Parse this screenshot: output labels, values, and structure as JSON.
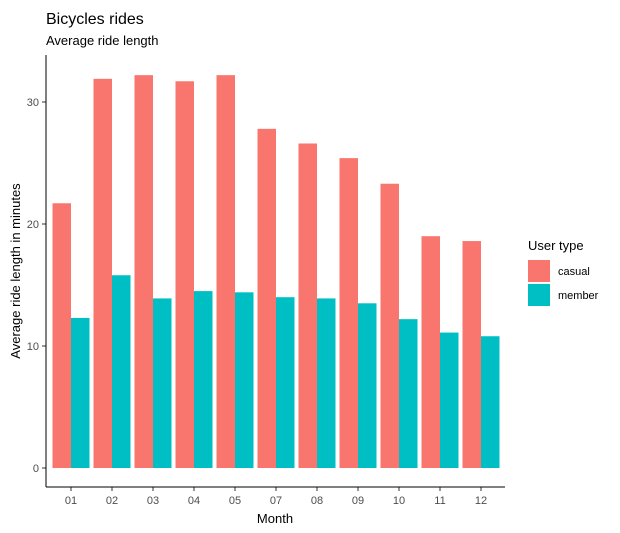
{
  "chart_data": {
    "type": "bar",
    "title": "Bicycles rides",
    "subtitle": "Average ride length",
    "xlabel": "Month",
    "ylabel": "Average ride length in minutes",
    "categories": [
      "01",
      "02",
      "03",
      "04",
      "05",
      "07",
      "08",
      "09",
      "10",
      "11",
      "12"
    ],
    "series": [
      {
        "name": "casual",
        "color": "#F8766D",
        "values": [
          21.7,
          31.9,
          32.2,
          31.7,
          32.2,
          27.8,
          26.6,
          25.4,
          23.3,
          19.0,
          18.6
        ]
      },
      {
        "name": "member",
        "color": "#00BFC4",
        "values": [
          12.3,
          15.8,
          13.9,
          14.5,
          14.4,
          14.0,
          13.9,
          13.5,
          12.2,
          11.1,
          10.8
        ]
      }
    ],
    "ylim": [
      0,
      33
    ],
    "yticks": [
      0,
      10,
      20,
      30
    ],
    "grid": false,
    "legend": {
      "title": "User type",
      "position": "right"
    }
  }
}
